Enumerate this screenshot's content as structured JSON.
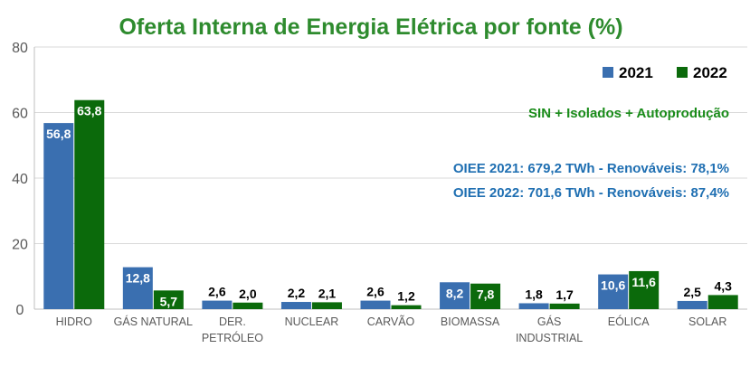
{
  "chart_data": {
    "type": "bar",
    "title": "Oferta Interna de Energia Elétrica por fonte (%)",
    "categories": [
      [
        "HIDRO"
      ],
      [
        "GÁS NATURAL"
      ],
      [
        "DER.",
        "PETRÓLEO"
      ],
      [
        "NUCLEAR"
      ],
      [
        "CARVÃO"
      ],
      [
        "BIOMASSA"
      ],
      [
        "GÁS",
        "INDUSTRIAL"
      ],
      [
        "EÓLICA"
      ],
      [
        "SOLAR"
      ]
    ],
    "series": [
      {
        "name": "2021",
        "color": "#3a6fb0",
        "values": [
          56.8,
          12.8,
          2.6,
          2.2,
          2.6,
          8.2,
          1.8,
          10.6,
          2.5
        ],
        "labels": [
          "56,8",
          "12,8",
          "2,6",
          "2,2",
          "2,6",
          "8,2",
          "1,8",
          "10,6",
          "2,5"
        ]
      },
      {
        "name": "2022",
        "color": "#0b6a0b",
        "values": [
          63.8,
          5.7,
          2.0,
          2.1,
          1.2,
          7.8,
          1.7,
          11.6,
          4.3
        ],
        "labels": [
          "63,8",
          "5,7",
          "2,0",
          "2,1",
          "1,2",
          "7,8",
          "1,7",
          "11,6",
          "4,3"
        ]
      }
    ],
    "ylim": [
      0,
      80
    ],
    "yticks": [
      0,
      20,
      40,
      60,
      80
    ],
    "grid": true,
    "legend_position": "top-right",
    "annotations": {
      "scope": "SIN + Isolados + Autoprodução",
      "oiee_2021": "OIEE 2021: 679,2 TWh - Renováveis: 78,1%",
      "oiee_2022": "OIEE 2022: 701,6 TWh - Renováveis: 87,4%"
    },
    "colors": {
      "title": "#2e8b2e",
      "scope": "#1a8c1a",
      "oiee": "#1f6fb2",
      "grid": "#d9d9d9",
      "axis_text": "#595959"
    }
  }
}
